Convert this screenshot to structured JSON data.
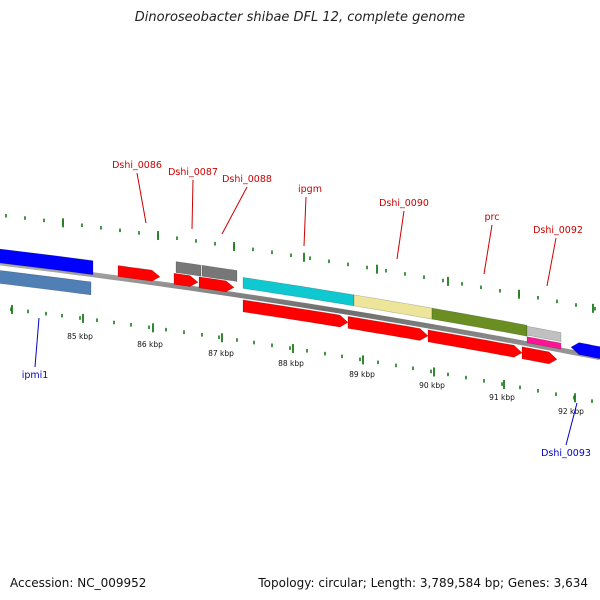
{
  "title": "Dinoroseobacter shibae DFL 12, complete genome",
  "footer": {
    "accession": "Accession: NC_009952",
    "topology": "Topology: circular; Length: 3,789,584 bp; Genes: 3,634"
  },
  "colors": {
    "forward_label": "#cc0000",
    "reverse_label": "#0000cc",
    "backbone": "#888888",
    "tick": "#1a7a1a",
    "cds": "#ff0000",
    "gene_gray": "#777777",
    "gene_blue": "#0000ff",
    "gene_steel": "#4f7fb5",
    "gene_cyan": "#10c8cf",
    "gene_khaki": "#ede59a",
    "gene_olive": "#6b8e23",
    "gene_silver": "#c0c0c0",
    "gene_pink": "#ff1493"
  },
  "kbp_labels": [
    "85 kbp",
    "86 kbp",
    "87 kbp",
    "88 kbp",
    "89 kbp",
    "90 kbp",
    "91 kbp",
    "92 kbp"
  ],
  "gene_labels": [
    {
      "text": "Dshi_0086",
      "strand": "forward"
    },
    {
      "text": "Dshi_0087",
      "strand": "forward"
    },
    {
      "text": "Dshi_0088",
      "strand": "forward"
    },
    {
      "text": "ipgm",
      "strand": "forward"
    },
    {
      "text": "Dshi_0090",
      "strand": "forward"
    },
    {
      "text": "prc",
      "strand": "forward"
    },
    {
      "text": "Dshi_0092",
      "strand": "forward"
    },
    {
      "text": "ipmi1",
      "strand": "reverse"
    },
    {
      "text": "Dshi_0093",
      "strand": "reverse"
    }
  ]
}
